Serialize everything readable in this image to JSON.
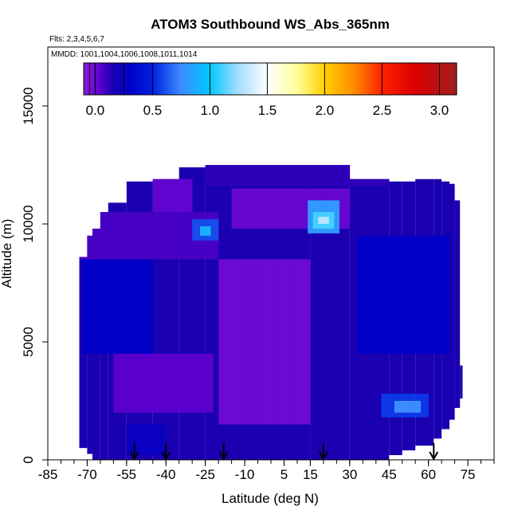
{
  "chart_data": {
    "type": "heatmap",
    "title": "ATOM3 Southbound WS_Abs_365nm",
    "flights_note": "Flts: 2,3,4,5,6,7",
    "dates_note": "MMDD: 1001,1004,1006,1008,1011,1014",
    "xlabel": "Latitude (deg N)",
    "ylabel": "Altitude (m)",
    "xlim": [
      -85,
      85
    ],
    "ylim": [
      0,
      17500
    ],
    "x_ticks": [
      -85,
      -70,
      -55,
      -40,
      -25,
      -10,
      5,
      15,
      30,
      45,
      60,
      75
    ],
    "x_tick_labels": [
      "-85",
      "-70",
      "-55",
      "-40",
      "-25",
      "-10",
      "5",
      "15",
      "30",
      "45",
      "60",
      "75"
    ],
    "x_minor_ticks": [
      -85,
      -80,
      -75,
      -70,
      -65,
      -60,
      -55,
      -50,
      -45,
      -40,
      -35,
      -30,
      -25,
      -20,
      -15,
      -10,
      -5,
      0,
      5,
      10,
      15,
      20,
      25,
      30,
      35,
      40,
      45,
      50,
      55,
      60,
      65,
      70,
      75,
      80,
      85
    ],
    "y_ticks": [
      0,
      5000,
      10000,
      15000
    ],
    "y_tick_labels": [
      "0",
      "5000",
      "10000",
      "15000"
    ],
    "colorbar": {
      "range": [
        -0.1,
        3.15
      ],
      "ticks": [
        0.0,
        0.5,
        1.0,
        1.5,
        2.0,
        2.5,
        3.0
      ],
      "tick_labels": [
        "0.0",
        "0.5",
        "1.0",
        "1.5",
        "2.0",
        "2.5",
        "3.0"
      ],
      "colors": [
        {
          "v": -0.1,
          "c": "#8a1de0"
        },
        {
          "v": 0.05,
          "c": "#5a00cc"
        },
        {
          "v": 0.15,
          "c": "#1a00b0"
        },
        {
          "v": 0.3,
          "c": "#0000c8"
        },
        {
          "v": 0.5,
          "c": "#0020e0"
        },
        {
          "v": 0.75,
          "c": "#3c8cff"
        },
        {
          "v": 1.0,
          "c": "#00c8ff"
        },
        {
          "v": 1.25,
          "c": "#a8ddff"
        },
        {
          "v": 1.5,
          "c": "#ffffff"
        },
        {
          "v": 1.75,
          "c": "#ffffa0"
        },
        {
          "v": 2.0,
          "c": "#ffd000"
        },
        {
          "v": 2.25,
          "c": "#ff8c00"
        },
        {
          "v": 2.5,
          "c": "#ff2000"
        },
        {
          "v": 2.8,
          "c": "#d80000"
        },
        {
          "v": 3.15,
          "c": "#a02020"
        }
      ]
    },
    "flight_markers_lat": [
      -52,
      -40,
      -18,
      20,
      62
    ],
    "region": {
      "columns": [
        {
          "lat": [
            -73,
            -70
          ],
          "alt": [
            500,
            8600
          ]
        },
        {
          "lat": [
            -70,
            -68
          ],
          "alt": [
            250,
            9500
          ]
        },
        {
          "lat": [
            -68,
            -65
          ],
          "alt": [
            0,
            9800
          ]
        },
        {
          "lat": [
            -65,
            -62
          ],
          "alt": [
            0,
            10500
          ]
        },
        {
          "lat": [
            -62,
            -55
          ],
          "alt": [
            0,
            10900
          ]
        },
        {
          "lat": [
            -55,
            -45
          ],
          "alt": [
            0,
            11800
          ]
        },
        {
          "lat": [
            -45,
            -35
          ],
          "alt": [
            0,
            11900
          ]
        },
        {
          "lat": [
            -35,
            -25
          ],
          "alt": [
            0,
            12400
          ]
        },
        {
          "lat": [
            -25,
            0
          ],
          "alt": [
            0,
            12500
          ]
        },
        {
          "lat": [
            0,
            15
          ],
          "alt": [
            0,
            12500
          ]
        },
        {
          "lat": [
            15,
            30
          ],
          "alt": [
            0,
            12500
          ]
        },
        {
          "lat": [
            30,
            45
          ],
          "alt": [
            0,
            11900
          ]
        },
        {
          "lat": [
            45,
            50
          ],
          "alt": [
            200,
            11800
          ]
        },
        {
          "lat": [
            50,
            55
          ],
          "alt": [
            400,
            11800
          ]
        },
        {
          "lat": [
            55,
            62
          ],
          "alt": [
            600,
            11900
          ]
        },
        {
          "lat": [
            62,
            65
          ],
          "alt": [
            900,
            11900
          ]
        },
        {
          "lat": [
            65,
            68
          ],
          "alt": [
            1300,
            11800
          ]
        },
        {
          "lat": [
            68,
            70
          ],
          "alt": [
            1700,
            11700
          ]
        },
        {
          "lat": [
            70,
            72
          ],
          "alt": [
            2200,
            11000
          ]
        },
        {
          "lat": [
            72,
            73
          ],
          "alt": [
            2600,
            4000
          ]
        }
      ],
      "background_value": 0.15
    },
    "features": [
      {
        "lat": [
          -20,
          15
        ],
        "alt": [
          1500,
          8500
        ],
        "value": 0.0
      },
      {
        "lat": [
          -60,
          -22
        ],
        "alt": [
          2000,
          4500
        ],
        "value": 0.05
      },
      {
        "lat": [
          -72,
          -45
        ],
        "alt": [
          4500,
          8500
        ],
        "value": 0.3
      },
      {
        "lat": [
          33,
          68
        ],
        "alt": [
          4500,
          9500
        ],
        "value": 0.3
      },
      {
        "lat": [
          42,
          60
        ],
        "alt": [
          1800,
          2800
        ],
        "value": 0.55
      },
      {
        "lat": [
          47,
          57
        ],
        "alt": [
          2000,
          2500
        ],
        "value": 0.75
      },
      {
        "lat": [
          -75,
          -20
        ],
        "alt": [
          8500,
          10500
        ],
        "value": 0.08
      },
      {
        "lat": [
          -15,
          30
        ],
        "alt": [
          9800,
          11500
        ],
        "value": 0.02
      },
      {
        "lat": [
          -30,
          -20
        ],
        "alt": [
          9300,
          10200
        ],
        "value": 0.6
      },
      {
        "lat": [
          -27,
          -23
        ],
        "alt": [
          9500,
          9900
        ],
        "value": 0.9
      },
      {
        "lat": [
          14,
          26
        ],
        "alt": [
          9600,
          11000
        ],
        "value": 0.8
      },
      {
        "lat": [
          16,
          24
        ],
        "alt": [
          9800,
          10500
        ],
        "value": 1.1
      },
      {
        "lat": [
          18,
          22
        ],
        "alt": [
          10000,
          10300
        ],
        "value": 1.3
      },
      {
        "lat": [
          -25,
          45
        ],
        "alt": [
          11600,
          12500
        ],
        "value": 0.12
      },
      {
        "lat": [
          -45,
          -30
        ],
        "alt": [
          10500,
          11900
        ],
        "value": 0.03
      },
      {
        "lat": [
          -55,
          -40
        ],
        "alt": [
          200,
          1500
        ],
        "value": 0.25
      }
    ]
  }
}
